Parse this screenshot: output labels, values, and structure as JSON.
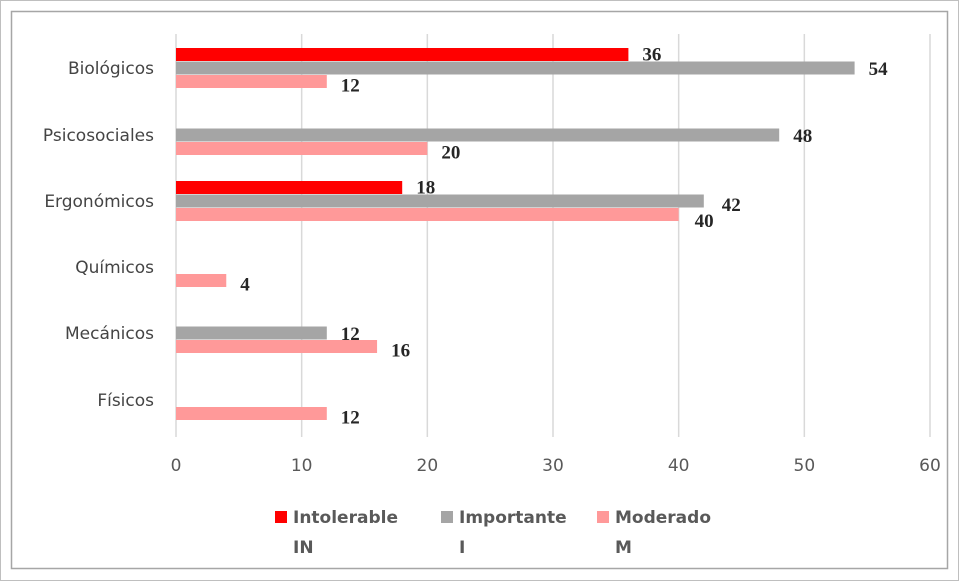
{
  "chart_data": {
    "type": "bar",
    "orientation": "horizontal",
    "categories": [
      "Biológicos",
      "Psicosociales",
      "Ergonómicos",
      "Químicos",
      "Mecánicos",
      "Físicos"
    ],
    "series": [
      {
        "name_line1": "Intolerable",
        "name_line2": "IN",
        "color": "#ff0000",
        "values": [
          36,
          null,
          18,
          null,
          null,
          null
        ]
      },
      {
        "name_line1": "Importante",
        "name_line2": "I",
        "color": "#a5a5a5",
        "values": [
          54,
          48,
          42,
          null,
          12,
          null
        ]
      },
      {
        "name_line1": "Moderado",
        "name_line2": "M",
        "color": "#ff9999",
        "values": [
          12,
          20,
          40,
          4,
          16,
          12
        ]
      }
    ],
    "xlim": [
      0,
      60
    ],
    "xticks": [
      0,
      10,
      20,
      30,
      40,
      50,
      60
    ],
    "grid": true,
    "legend_position": "bottom"
  }
}
